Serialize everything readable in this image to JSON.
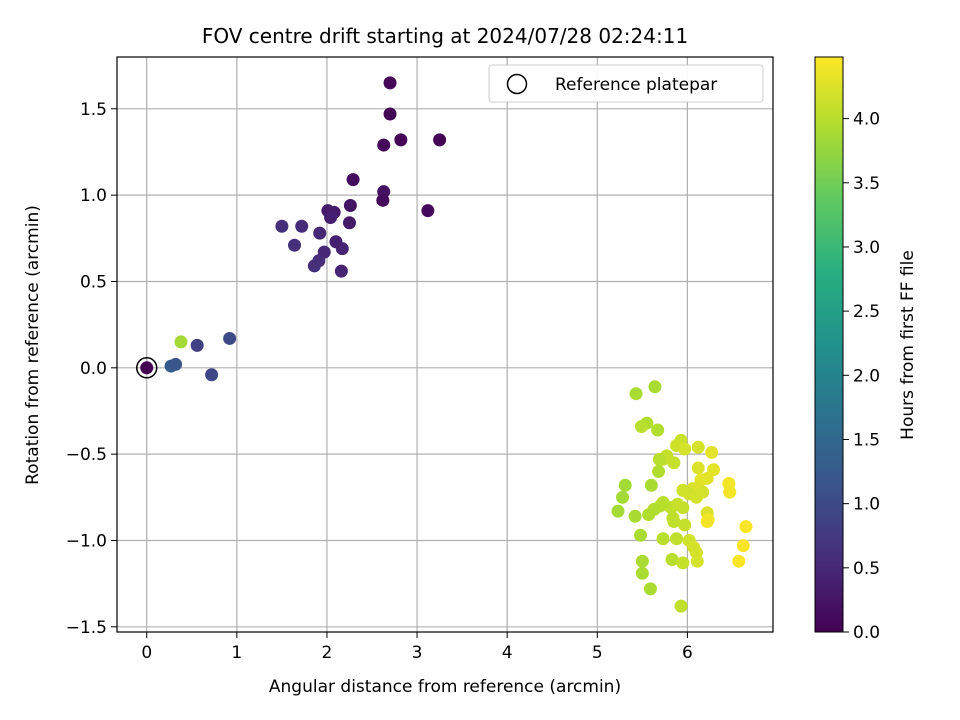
{
  "chart_data": {
    "type": "scatter",
    "title": "FOV centre drift starting at 2024/07/28 02:24:11",
    "xlabel": "Angular distance from reference (arcmin)",
    "ylabel": "Rotation from reference (arcmin)",
    "xlim": [
      -0.33,
      6.95
    ],
    "ylim": [
      -1.53,
      1.8
    ],
    "xticks": [
      0,
      1,
      2,
      3,
      4,
      5,
      6
    ],
    "xtick_labels": [
      "0",
      "1",
      "2",
      "3",
      "4",
      "5",
      "6"
    ],
    "yticks": [
      -1.5,
      -1.0,
      -0.5,
      0.0,
      0.5,
      1.0,
      1.5
    ],
    "ytick_labels": [
      "−1.5",
      "−1.0",
      "−0.5",
      "0.0",
      "0.5",
      "1.0",
      "1.5"
    ],
    "grid": true,
    "legend": {
      "location": "upper right",
      "entries": [
        "Reference platepar"
      ]
    },
    "colorbar": {
      "label": "Hours from first FF file",
      "colormap": "viridis",
      "range": [
        0.0,
        4.48
      ],
      "ticks": [
        0.0,
        0.5,
        1.0,
        1.5,
        2.0,
        2.5,
        3.0,
        3.5,
        4.0
      ],
      "tick_labels": [
        "0.0",
        "0.5",
        "1.0",
        "1.5",
        "2.0",
        "2.5",
        "3.0",
        "3.5",
        "4.0"
      ]
    },
    "reference_point": {
      "name": "Reference platepar",
      "x": 0.0,
      "y": 0.0
    },
    "series": [
      {
        "points": [
          {
            "x": 0.0,
            "y": 0.0,
            "c": 0.0
          },
          {
            "x": 2.7,
            "y": 1.65,
            "c": 0.05
          },
          {
            "x": 2.7,
            "y": 1.47,
            "c": 0.05
          },
          {
            "x": 2.82,
            "y": 1.32,
            "c": 0.05
          },
          {
            "x": 2.63,
            "y": 1.29,
            "c": 0.08
          },
          {
            "x": 3.25,
            "y": 1.32,
            "c": 0.05
          },
          {
            "x": 2.29,
            "y": 1.09,
            "c": 0.15
          },
          {
            "x": 2.63,
            "y": 1.02,
            "c": 0.2
          },
          {
            "x": 2.62,
            "y": 0.97,
            "c": 0.1
          },
          {
            "x": 3.12,
            "y": 0.91,
            "c": 0.1
          },
          {
            "x": 2.26,
            "y": 0.94,
            "c": 0.25
          },
          {
            "x": 2.01,
            "y": 0.91,
            "c": 0.35
          },
          {
            "x": 2.08,
            "y": 0.9,
            "c": 0.35
          },
          {
            "x": 2.04,
            "y": 0.87,
            "c": 0.4
          },
          {
            "x": 2.25,
            "y": 0.84,
            "c": 0.3
          },
          {
            "x": 1.5,
            "y": 0.82,
            "c": 0.6
          },
          {
            "x": 1.72,
            "y": 0.82,
            "c": 0.55
          },
          {
            "x": 1.92,
            "y": 0.78,
            "c": 0.5
          },
          {
            "x": 2.1,
            "y": 0.73,
            "c": 0.4
          },
          {
            "x": 1.64,
            "y": 0.71,
            "c": 0.6
          },
          {
            "x": 2.17,
            "y": 0.69,
            "c": 0.45
          },
          {
            "x": 1.97,
            "y": 0.67,
            "c": 0.5
          },
          {
            "x": 1.91,
            "y": 0.62,
            "c": 0.55
          },
          {
            "x": 1.86,
            "y": 0.59,
            "c": 0.6
          },
          {
            "x": 2.16,
            "y": 0.56,
            "c": 0.45
          },
          {
            "x": 0.92,
            "y": 0.17,
            "c": 1.0
          },
          {
            "x": 0.56,
            "y": 0.13,
            "c": 0.85
          },
          {
            "x": 0.27,
            "y": 0.01,
            "c": 1.3
          },
          {
            "x": 0.32,
            "y": 0.02,
            "c": 1.2
          },
          {
            "x": 0.72,
            "y": -0.04,
            "c": 0.95
          },
          {
            "x": 0.38,
            "y": 0.15,
            "c": 3.85
          },
          {
            "x": 5.64,
            "y": -0.11,
            "c": 3.9
          },
          {
            "x": 5.43,
            "y": -0.15,
            "c": 3.9
          },
          {
            "x": 5.55,
            "y": -0.32,
            "c": 3.95
          },
          {
            "x": 5.49,
            "y": -0.34,
            "c": 4.0
          },
          {
            "x": 5.67,
            "y": -0.36,
            "c": 3.95
          },
          {
            "x": 5.93,
            "y": -0.42,
            "c": 4.1
          },
          {
            "x": 5.88,
            "y": -0.45,
            "c": 4.15
          },
          {
            "x": 6.12,
            "y": -0.46,
            "c": 4.2
          },
          {
            "x": 5.97,
            "y": -0.47,
            "c": 4.2
          },
          {
            "x": 6.27,
            "y": -0.49,
            "c": 4.3
          },
          {
            "x": 5.77,
            "y": -0.51,
            "c": 4.1
          },
          {
            "x": 5.73,
            "y": -0.53,
            "c": 4.1
          },
          {
            "x": 5.69,
            "y": -0.53,
            "c": 4.0
          },
          {
            "x": 5.85,
            "y": -0.55,
            "c": 4.1
          },
          {
            "x": 6.12,
            "y": -0.58,
            "c": 4.25
          },
          {
            "x": 6.29,
            "y": -0.59,
            "c": 4.3
          },
          {
            "x": 5.68,
            "y": -0.6,
            "c": 3.95
          },
          {
            "x": 6.22,
            "y": -0.64,
            "c": 4.3
          },
          {
            "x": 6.15,
            "y": -0.65,
            "c": 4.3
          },
          {
            "x": 5.31,
            "y": -0.68,
            "c": 3.85
          },
          {
            "x": 5.6,
            "y": -0.68,
            "c": 3.9
          },
          {
            "x": 6.46,
            "y": -0.67,
            "c": 4.4
          },
          {
            "x": 6.06,
            "y": -0.7,
            "c": 4.2
          },
          {
            "x": 6.12,
            "y": -0.7,
            "c": 4.25
          },
          {
            "x": 5.95,
            "y": -0.71,
            "c": 4.15
          },
          {
            "x": 6.17,
            "y": -0.72,
            "c": 4.2
          },
          {
            "x": 6.47,
            "y": -0.72,
            "c": 4.4
          },
          {
            "x": 6.02,
            "y": -0.73,
            "c": 4.15
          },
          {
            "x": 5.28,
            "y": -0.75,
            "c": 3.85
          },
          {
            "x": 6.1,
            "y": -0.75,
            "c": 4.2
          },
          {
            "x": 5.82,
            "y": -0.81,
            "c": 4.05
          },
          {
            "x": 5.73,
            "y": -0.78,
            "c": 4.0
          },
          {
            "x": 5.7,
            "y": -0.8,
            "c": 4.0
          },
          {
            "x": 5.89,
            "y": -0.79,
            "c": 4.1
          },
          {
            "x": 5.95,
            "y": -0.81,
            "c": 4.1
          },
          {
            "x": 5.23,
            "y": -0.83,
            "c": 3.85
          },
          {
            "x": 5.63,
            "y": -0.82,
            "c": 3.95
          },
          {
            "x": 6.22,
            "y": -0.84,
            "c": 4.25
          },
          {
            "x": 5.57,
            "y": -0.85,
            "c": 3.95
          },
          {
            "x": 5.42,
            "y": -0.86,
            "c": 3.9
          },
          {
            "x": 5.84,
            "y": -0.87,
            "c": 4.05
          },
          {
            "x": 5.85,
            "y": -0.89,
            "c": 4.05
          },
          {
            "x": 6.22,
            "y": -0.89,
            "c": 4.4
          },
          {
            "x": 6.23,
            "y": -0.88,
            "c": 4.4
          },
          {
            "x": 5.97,
            "y": -0.91,
            "c": 4.1
          },
          {
            "x": 6.65,
            "y": -0.92,
            "c": 4.45
          },
          {
            "x": 5.48,
            "y": -0.97,
            "c": 3.9
          },
          {
            "x": 5.73,
            "y": -0.99,
            "c": 4.0
          },
          {
            "x": 5.88,
            "y": -0.99,
            "c": 4.05
          },
          {
            "x": 6.02,
            "y": -1.0,
            "c": 4.15
          },
          {
            "x": 6.07,
            "y": -1.04,
            "c": 4.2
          },
          {
            "x": 6.62,
            "y": -1.03,
            "c": 4.45
          },
          {
            "x": 6.1,
            "y": -1.07,
            "c": 4.2
          },
          {
            "x": 5.83,
            "y": -1.11,
            "c": 4.0
          },
          {
            "x": 5.5,
            "y": -1.12,
            "c": 3.9
          },
          {
            "x": 5.95,
            "y": -1.13,
            "c": 4.1
          },
          {
            "x": 6.11,
            "y": -1.12,
            "c": 4.2
          },
          {
            "x": 6.57,
            "y": -1.12,
            "c": 4.45
          },
          {
            "x": 5.5,
            "y": -1.19,
            "c": 3.9
          },
          {
            "x": 5.59,
            "y": -1.28,
            "c": 3.9
          },
          {
            "x": 5.93,
            "y": -1.38,
            "c": 4.05
          }
        ]
      }
    ]
  }
}
